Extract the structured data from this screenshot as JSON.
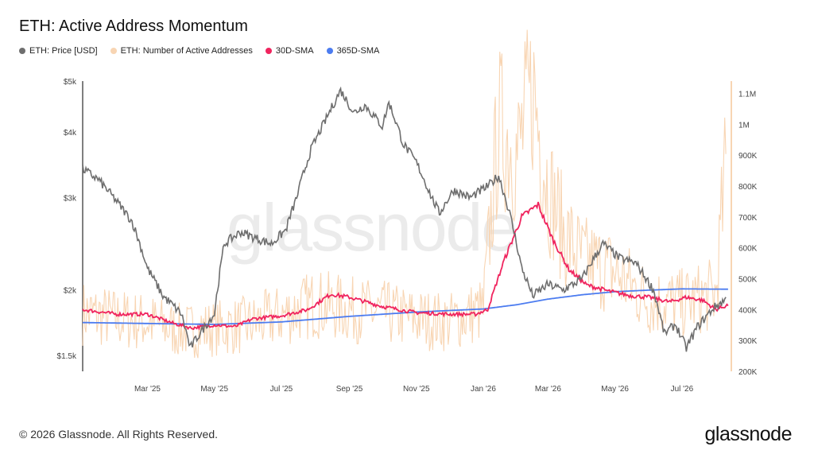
{
  "header": {
    "title": "ETH: Active Address Momentum"
  },
  "legend": [
    {
      "label": "ETH: Price [USD]",
      "color": "#6e6e6e"
    },
    {
      "label": "ETH: Number of Active Addresses",
      "color": "#f8d5b3"
    },
    {
      "label": "30D-SMA",
      "color": "#f0245e"
    },
    {
      "label": "365D-SMA",
      "color": "#4c7cf0"
    }
  ],
  "watermark": "glassnode",
  "footer": {
    "copyright": "© 2026 Glassnode. All Rights Reserved.",
    "logo": "glassnode"
  },
  "chart_data": {
    "type": "line",
    "title": "ETH: Active Address Momentum",
    "x_tick_labels": [
      "Mar '25",
      "May '25",
      "Jul '25",
      "Sep '25",
      "Nov '25",
      "Jan '26",
      "Mar '26",
      "May '26",
      "Jul '26"
    ],
    "y_left": {
      "scale": "log",
      "ticks": [
        "$1.5k",
        "$2k",
        "$3k",
        "$4k",
        "$5k"
      ],
      "tick_values": [
        1500,
        2000,
        3000,
        4000,
        5000
      ],
      "range": [
        1400,
        5000
      ]
    },
    "y_right": {
      "scale": "linear",
      "ticks": [
        "200K",
        "300K",
        "400K",
        "500K",
        "600K",
        "700K",
        "800K",
        "900K",
        "1M",
        "1.1M"
      ],
      "tick_values": [
        200000,
        300000,
        400000,
        500000,
        600000,
        700000,
        800000,
        900000,
        1000000,
        1100000
      ],
      "range": [
        200000,
        1140000
      ]
    },
    "x_range": [
      "2025-01-01",
      "2026-08-15"
    ],
    "series": [
      {
        "name": "ETH: Price [USD]",
        "axis": "left",
        "color": "#6e6e6e",
        "x": [
          "2025-01-01",
          "2025-01-15",
          "2025-02-01",
          "2025-02-15",
          "2025-03-01",
          "2025-03-15",
          "2025-04-01",
          "2025-04-09",
          "2025-04-20",
          "2025-05-01",
          "2025-05-10",
          "2025-05-25",
          "2025-06-10",
          "2025-06-22",
          "2025-07-05",
          "2025-07-15",
          "2025-07-28",
          "2025-08-10",
          "2025-08-24",
          "2025-09-05",
          "2025-09-15",
          "2025-10-01",
          "2025-10-07",
          "2025-10-20",
          "2025-11-01",
          "2025-11-15",
          "2025-11-22",
          "2025-12-05",
          "2025-12-20",
          "2026-01-05",
          "2026-01-15",
          "2026-01-25",
          "2026-02-05",
          "2026-02-15",
          "2026-03-01",
          "2026-03-15",
          "2026-04-01",
          "2026-04-20",
          "2026-05-05",
          "2026-05-20",
          "2026-06-05",
          "2026-06-15",
          "2026-06-25",
          "2026-07-05",
          "2026-07-15",
          "2026-07-30",
          "2026-08-10"
        ],
        "values": [
          3400,
          3250,
          2950,
          2700,
          2200,
          1950,
          1800,
          1550,
          1680,
          1800,
          2450,
          2580,
          2500,
          2450,
          2600,
          3000,
          3700,
          4200,
          4800,
          4350,
          4500,
          4100,
          4550,
          3800,
          3500,
          3000,
          2800,
          3100,
          3000,
          3150,
          3300,
          2800,
          2200,
          1950,
          2050,
          2000,
          2100,
          2450,
          2300,
          2250,
          2000,
          1650,
          1720,
          1550,
          1700,
          1850,
          1920
        ]
      },
      {
        "name": "ETH: Number of Active Addresses",
        "axis": "right",
        "color": "#f8d5b3",
        "x": [
          "2025-01-01",
          "2025-02-01",
          "2025-03-01",
          "2025-04-01",
          "2025-05-01",
          "2025-06-01",
          "2025-07-01",
          "2025-08-01",
          "2025-09-01",
          "2025-10-01",
          "2025-11-01",
          "2025-12-01",
          "2026-01-01",
          "2026-01-15",
          "2026-02-01",
          "2026-02-15",
          "2026-03-01",
          "2026-03-15",
          "2026-04-01",
          "2026-05-01",
          "2026-06-01",
          "2026-07-01",
          "2026-08-01",
          "2026-08-10"
        ],
        "values": [
          390000,
          370000,
          360000,
          330000,
          340000,
          350000,
          380000,
          420000,
          400000,
          390000,
          370000,
          360000,
          400000,
          1000000,
          900000,
          1120000,
          800000,
          650000,
          560000,
          520000,
          430000,
          420000,
          450000,
          870000
        ]
      },
      {
        "name": "30D-SMA",
        "axis": "right",
        "color": "#f0245e",
        "x": [
          "2025-01-01",
          "2025-02-01",
          "2025-03-01",
          "2025-03-25",
          "2025-04-10",
          "2025-05-01",
          "2025-05-20",
          "2025-06-05",
          "2025-07-01",
          "2025-07-25",
          "2025-08-15",
          "2025-09-01",
          "2025-10-01",
          "2025-11-01",
          "2025-12-01",
          "2025-12-25",
          "2026-01-05",
          "2026-01-20",
          "2026-02-05",
          "2026-02-20",
          "2026-03-05",
          "2026-03-20",
          "2026-04-05",
          "2026-04-25",
          "2026-05-15",
          "2026-06-01",
          "2026-06-20",
          "2026-07-05",
          "2026-07-20",
          "2026-08-01",
          "2026-08-12"
        ],
        "values": [
          400000,
          385000,
          385000,
          355000,
          340000,
          350000,
          345000,
          370000,
          380000,
          400000,
          450000,
          440000,
          410000,
          390000,
          385000,
          385000,
          400000,
          560000,
          700000,
          740000,
          630000,
          530000,
          480000,
          460000,
          445000,
          440000,
          425000,
          440000,
          430000,
          400000,
          415000
        ]
      },
      {
        "name": "365D-SMA",
        "axis": "right",
        "color": "#4c7cf0",
        "x": [
          "2025-01-01",
          "2025-03-01",
          "2025-05-01",
          "2025-07-01",
          "2025-09-01",
          "2025-11-01",
          "2026-01-01",
          "2026-02-01",
          "2026-03-01",
          "2026-04-01",
          "2026-05-01",
          "2026-06-01",
          "2026-07-01",
          "2026-08-12"
        ],
        "values": [
          358000,
          355000,
          352000,
          360000,
          378000,
          392000,
          402000,
          416000,
          434000,
          448000,
          458000,
          463000,
          467000,
          466000
        ]
      }
    ]
  }
}
